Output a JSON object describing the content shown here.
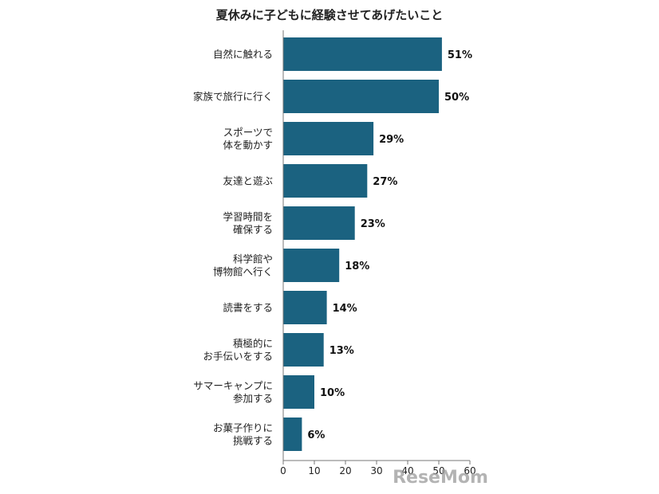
{
  "chart_data": {
    "type": "bar",
    "orientation": "horizontal",
    "title": "夏休みに子どもに経験させてあげたいこと",
    "categories": [
      [
        "自然に触れる"
      ],
      [
        "家族で旅行に行く"
      ],
      [
        "スポーツで",
        "体を動かす"
      ],
      [
        "友達と遊ぶ"
      ],
      [
        "学習時間を",
        "確保する"
      ],
      [
        "科学館や",
        "博物館へ行く"
      ],
      [
        "読書をする"
      ],
      [
        "積極的に",
        "お手伝いをする"
      ],
      [
        "サマーキャンプに",
        "参加する"
      ],
      [
        "お菓子作りに",
        "挑戦する"
      ]
    ],
    "values": [
      51,
      50,
      29,
      27,
      23,
      18,
      14,
      13,
      10,
      6
    ],
    "value_labels": [
      "51%",
      "50%",
      "29%",
      "27%",
      "23%",
      "18%",
      "14%",
      "13%",
      "10%",
      "6%"
    ],
    "xlim": [
      0,
      60
    ],
    "xticks": [
      "0",
      "10",
      "20",
      "30",
      "40",
      "50",
      "60"
    ],
    "xlabel": "",
    "ylabel": "",
    "grid": false,
    "legend": "none",
    "bar_color": "#1b6280"
  },
  "watermark": {
    "text": "ReseMom"
  }
}
